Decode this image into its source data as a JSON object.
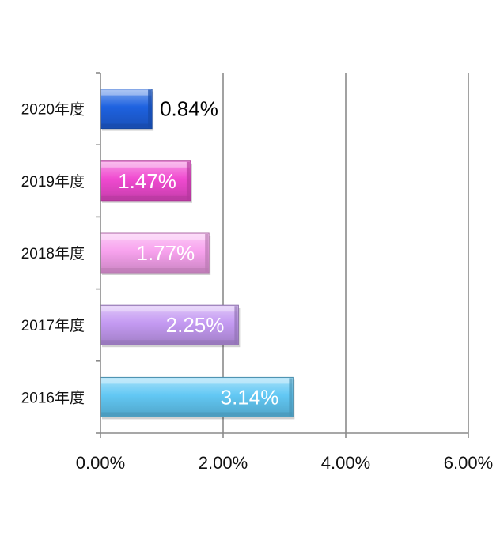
{
  "chart_data": {
    "type": "bar",
    "orientation": "horizontal",
    "categories": [
      "2020年度",
      "2019年度",
      "2018年度",
      "2017年度",
      "2016年度"
    ],
    "values": [
      0.84,
      1.47,
      1.77,
      2.25,
      3.14
    ],
    "value_labels": [
      "0.84%",
      "1.47%",
      "1.77%",
      "2.25%",
      "3.14%"
    ],
    "bar_colors": [
      "#1e62e0",
      "#f04ad0",
      "#f8a2ee",
      "#c49af2",
      "#62c8f4"
    ],
    "label_colors": [
      "#000000",
      "#ffffff",
      "#ffffff",
      "#ffffff",
      "#ffffff"
    ],
    "xlim": [
      0,
      6
    ],
    "xticks": [
      0,
      2,
      4,
      6
    ],
    "xtick_labels": [
      "0.00%",
      "2.00%",
      "4.00%",
      "6.00%"
    ],
    "title": "",
    "xlabel": "",
    "ylabel": "",
    "grid": "vertical",
    "legend": "none"
  }
}
